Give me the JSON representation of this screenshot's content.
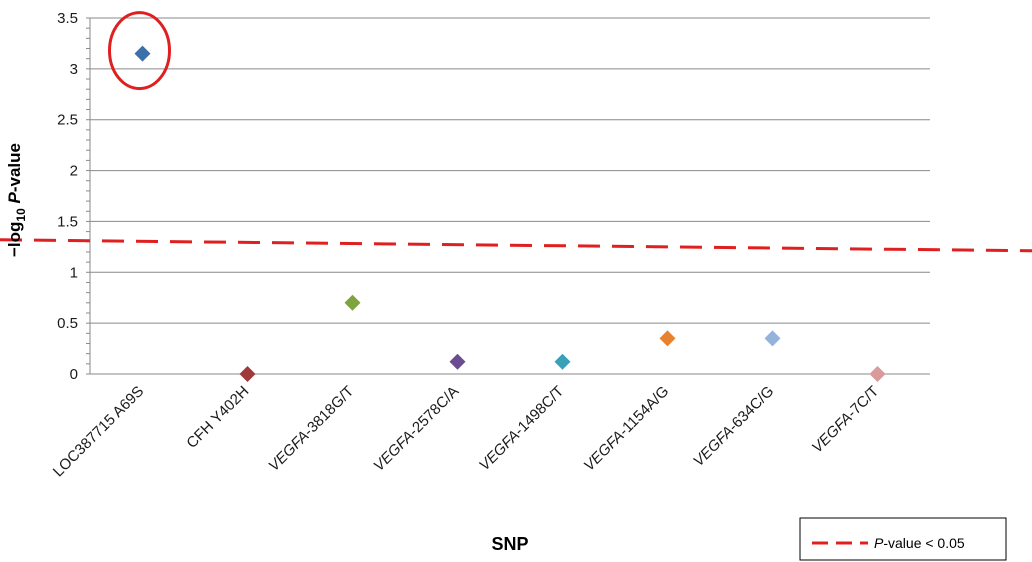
{
  "chart_data": {
    "type": "scatter",
    "xlabel": "SNP",
    "ylabel": {
      "prefix": "−log",
      "subscript": "10",
      "italic": "P",
      "suffix": "-value"
    },
    "ylim": [
      0,
      3.5
    ],
    "yticks": [
      "0",
      "0.5",
      "1",
      "1.5",
      "2",
      "2.5",
      "3",
      "3.5"
    ],
    "grid": "horizontal",
    "categories": [
      {
        "name": "LOC387715 A69S",
        "italic_gene": "",
        "rest": "LOC387715 A69S",
        "value": 3.15,
        "color": "#3d6fa8"
      },
      {
        "name": "CFH Y402H",
        "italic_gene": "",
        "rest": "CFH Y402H",
        "value": 0.0,
        "color": "#a03a3a"
      },
      {
        "name": "VEGFA-3818G/T",
        "italic_gene": "VEGFA",
        "rest": "-3818G/T",
        "value": 0.7,
        "color": "#7fa43f"
      },
      {
        "name": "VEGFA-2578C/A",
        "italic_gene": "VEGFA",
        "rest": "-2578C/A",
        "value": 0.12,
        "color": "#6a4c93"
      },
      {
        "name": "VEGFA-1498C/T",
        "italic_gene": "VEGFA",
        "rest": "-1498C/T",
        "value": 0.12,
        "color": "#3aa0b8"
      },
      {
        "name": "VEGFA-1154A/G",
        "italic_gene": "VEGFA",
        "rest": "-1154A/G",
        "value": 0.35,
        "color": "#e8822e"
      },
      {
        "name": "VEGFA-634C/G",
        "italic_gene": "VEGFA",
        "rest": "-634C/G",
        "value": 0.35,
        "color": "#94b3da"
      },
      {
        "name": "VEGFA-7C/T",
        "italic_gene": "VEGFA",
        "rest": "-7C/T",
        "value": 0.0,
        "color": "#d89a9a"
      }
    ],
    "threshold": {
      "value": 1.3,
      "color": "#e02020",
      "legend_italic": "P",
      "legend_rest": "-value < 0.05"
    },
    "highlight": {
      "category_index": 0,
      "color": "#e02020"
    },
    "legend_position": "bottom-right"
  }
}
